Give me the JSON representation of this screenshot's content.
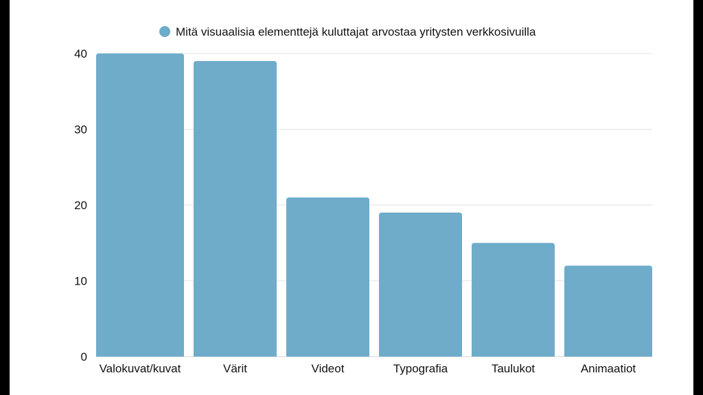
{
  "chart_data": {
    "type": "bar",
    "categories": [
      "Valokuvat/kuvat",
      "Värit",
      "Videot",
      "Typografia",
      "Taulukot",
      "Animaatiot"
    ],
    "series": [
      {
        "name": "Mitä visuaalisia elementtejä kuluttajat arvostaa yritysten verkkosivuilla",
        "values": [
          40,
          39,
          21,
          19,
          15,
          12
        ]
      }
    ],
    "ylim": [
      0,
      40
    ],
    "yticks": [
      0,
      10,
      20,
      30,
      40
    ],
    "grid": true,
    "legend_position": "top",
    "colors": {
      "bar": "#6eacca",
      "background": "#ffffff",
      "frame": "#000000",
      "grid": "#e3e3e3"
    }
  }
}
